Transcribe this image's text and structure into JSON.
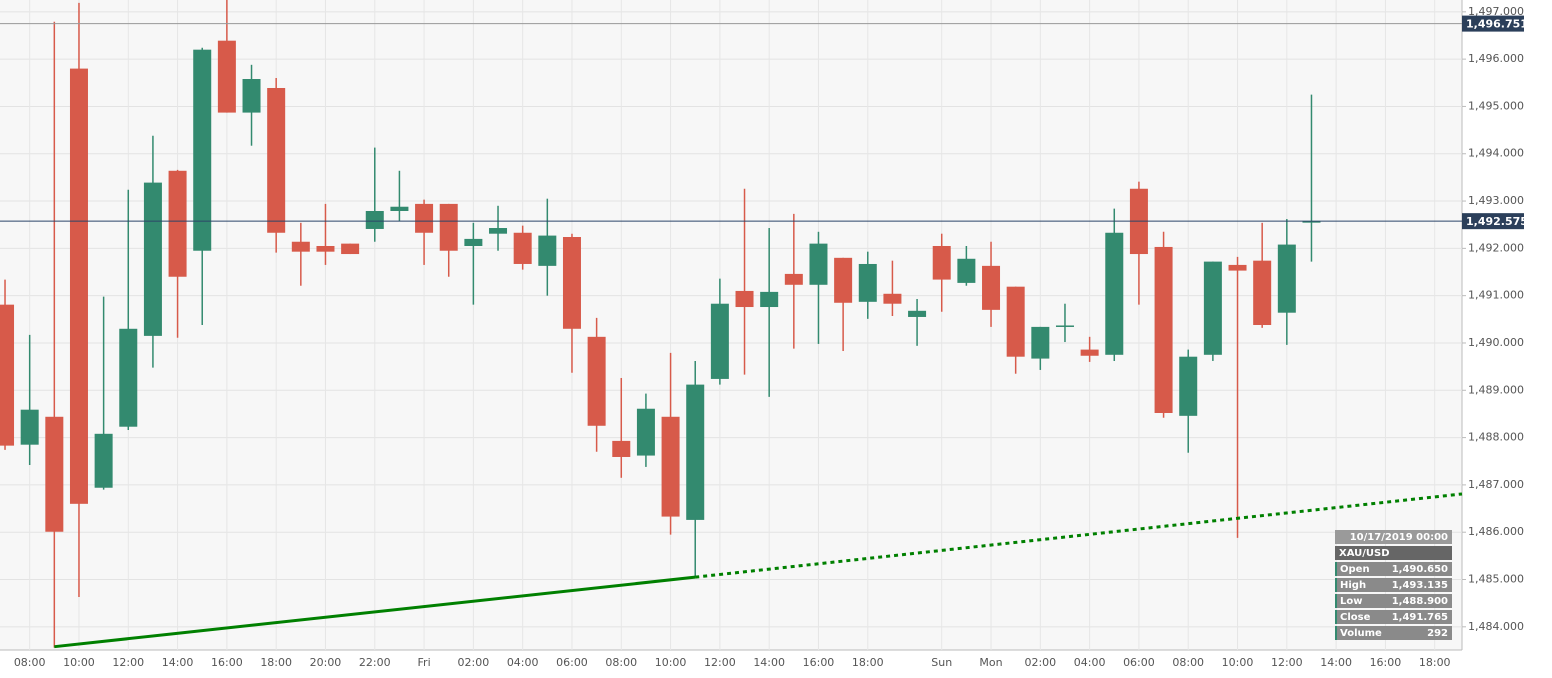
{
  "chart_data": {
    "type": "candlestick",
    "categories": [
      null,
      "08:00",
      null,
      "10:00",
      null,
      "12:00",
      null,
      "14:00",
      null,
      "16:00",
      null,
      "18:00",
      null,
      "20:00",
      null,
      "22:00",
      null,
      "Fri",
      null,
      "02:00",
      null,
      "04:00",
      null,
      "06:00",
      null,
      "08:00",
      null,
      "10:00",
      null,
      "12:00",
      null,
      "14:00",
      null,
      "16:00",
      null,
      "18:00",
      null,
      null,
      "Sun",
      null,
      "Mon",
      null,
      "02:00",
      null,
      "04:00",
      null,
      "06:00",
      null,
      "08:00",
      null,
      "10:00",
      null,
      "12:00",
      null,
      "14:00",
      null,
      "16:00",
      null,
      "18:00"
    ],
    "open": [
      1490.81,
      1487.85,
      1488.44,
      1495.8,
      1486.94,
      1488.23,
      1490.15,
      1493.64,
      1491.95,
      1496.39,
      1494.87,
      1495.39,
      1492.14,
      1492.05,
      1492.1,
      1492.41,
      1492.79,
      1492.94,
      1492.94,
      1492.05,
      1492.31,
      1492.33,
      1491.63,
      1492.24,
      1490.13,
      1487.93,
      1487.62,
      1488.44,
      1486.26,
      1489.24,
      1491.1,
      1490.76,
      1491.46,
      1491.23,
      1491.8,
      1490.87,
      1491.04,
      1490.55,
      1492.05,
      1491.27,
      1491.63,
      1491.19,
      1489.67,
      1490.36,
      1489.86,
      1489.75,
      1493.26,
      1492.03,
      1488.46,
      1489.75,
      1491.65,
      1491.74,
      1490.64,
      1492.55,
      null,
      null,
      null,
      null,
      null
    ],
    "high": [
      1491.34,
      1490.17,
      1496.79,
      1497.19,
      1490.98,
      1493.24,
      1494.38,
      1493.66,
      1496.24,
      1497.25,
      1495.88,
      1495.6,
      1492.54,
      1492.94,
      1492.1,
      1494.13,
      1493.64,
      1493.03,
      1492.94,
      1492.54,
      1492.9,
      1492.48,
      1493.05,
      1492.31,
      1490.53,
      1489.26,
      1488.93,
      1489.79,
      1489.62,
      1491.36,
      1493.26,
      1492.43,
      1492.73,
      1492.35,
      1491.8,
      1491.93,
      1491.74,
      1490.93,
      1492.31,
      1492.05,
      1492.14,
      1491.19,
      1490.34,
      1490.83,
      1490.13,
      1492.84,
      1493.41,
      1492.35,
      1489.86,
      1491.72,
      1491.82,
      1492.54,
      1492.62,
      1495.25,
      null,
      null,
      null,
      null,
      null
    ],
    "low": [
      1487.74,
      1487.42,
      1483.56,
      1484.63,
      1486.9,
      1488.16,
      1489.48,
      1490.11,
      1490.38,
      1494.87,
      1494.17,
      1491.91,
      1491.21,
      1491.65,
      1491.88,
      1492.14,
      1492.58,
      1491.65,
      1491.4,
      1490.81,
      1491.95,
      1491.55,
      1491.0,
      1489.37,
      1487.7,
      1487.15,
      1487.38,
      1485.95,
      1485.04,
      1489.12,
      1489.33,
      1488.86,
      1489.88,
      1489.98,
      1489.83,
      1490.51,
      1490.57,
      1489.94,
      1490.66,
      1491.21,
      1490.34,
      1489.35,
      1489.43,
      1490.02,
      1489.6,
      1489.62,
      1490.81,
      1488.42,
      1487.68,
      1489.62,
      1485.88,
      1490.32,
      1489.96,
      1491.72,
      null,
      null,
      null,
      null,
      null
    ],
    "close": [
      1487.83,
      1488.59,
      1486.01,
      1486.6,
      1488.08,
      1490.3,
      1493.39,
      1491.4,
      1496.2,
      1494.87,
      1495.58,
      1492.33,
      1491.93,
      1491.93,
      1491.88,
      1492.79,
      1492.88,
      1492.33,
      1491.95,
      1492.2,
      1492.43,
      1491.67,
      1492.27,
      1490.3,
      1488.25,
      1487.59,
      1488.61,
      1486.33,
      1489.12,
      1490.83,
      1490.76,
      1491.08,
      1491.23,
      1492.1,
      1490.85,
      1491.67,
      1490.83,
      1490.68,
      1491.34,
      1491.78,
      1490.7,
      1489.71,
      1490.34,
      1490.37,
      1489.73,
      1492.33,
      1491.88,
      1488.52,
      1489.71,
      1491.72,
      1491.53,
      1490.38,
      1492.08,
      1492.575,
      null,
      null,
      null,
      null,
      null
    ],
    "up_color": "#338a6f",
    "down_color": "#d75a4a",
    "ylim": [
      1483.51,
      1497.25
    ],
    "yticks": [
      {
        "value": 1484,
        "label": "1,484.000"
      },
      {
        "value": 1485,
        "label": "1,485.000"
      },
      {
        "value": 1486,
        "label": "1,486.000"
      },
      {
        "value": 1487,
        "label": "1,487.000"
      },
      {
        "value": 1488,
        "label": "1,488.000"
      },
      {
        "value": 1489,
        "label": "1,489.000"
      },
      {
        "value": 1490,
        "label": "1,490.000"
      },
      {
        "value": 1491,
        "label": "1,491.000"
      },
      {
        "value": 1492,
        "label": "1,492.000"
      },
      {
        "value": 1493,
        "label": "1,493.000"
      },
      {
        "value": 1494,
        "label": "1,494.000"
      },
      {
        "value": 1495,
        "label": "1,495.000"
      },
      {
        "value": 1496,
        "label": "1,496.000"
      },
      {
        "value": 1497,
        "label": "1,497.000"
      }
    ],
    "grid": true,
    "price_lines": [
      {
        "value": 1496.751,
        "label": "1,496.751",
        "color": "#999999"
      },
      {
        "value": 1492.575,
        "label": "1,492.575",
        "color": "#2b4468"
      }
    ],
    "trendline": {
      "x": [
        2,
        28
      ],
      "y": [
        1483.58,
        1485.05
      ],
      "color": "#008000"
    },
    "info_box": {
      "date": "10/17/2019 00:00",
      "symbol": "XAU/USD",
      "rows": [
        {
          "label": "Open",
          "value": "1,490.650"
        },
        {
          "label": "High",
          "value": "1,493.135"
        },
        {
          "label": "Low",
          "value": "1,488.900"
        },
        {
          "label": "Close",
          "value": "1,491.765"
        },
        {
          "label": "Volume",
          "value": "292"
        }
      ]
    }
  }
}
